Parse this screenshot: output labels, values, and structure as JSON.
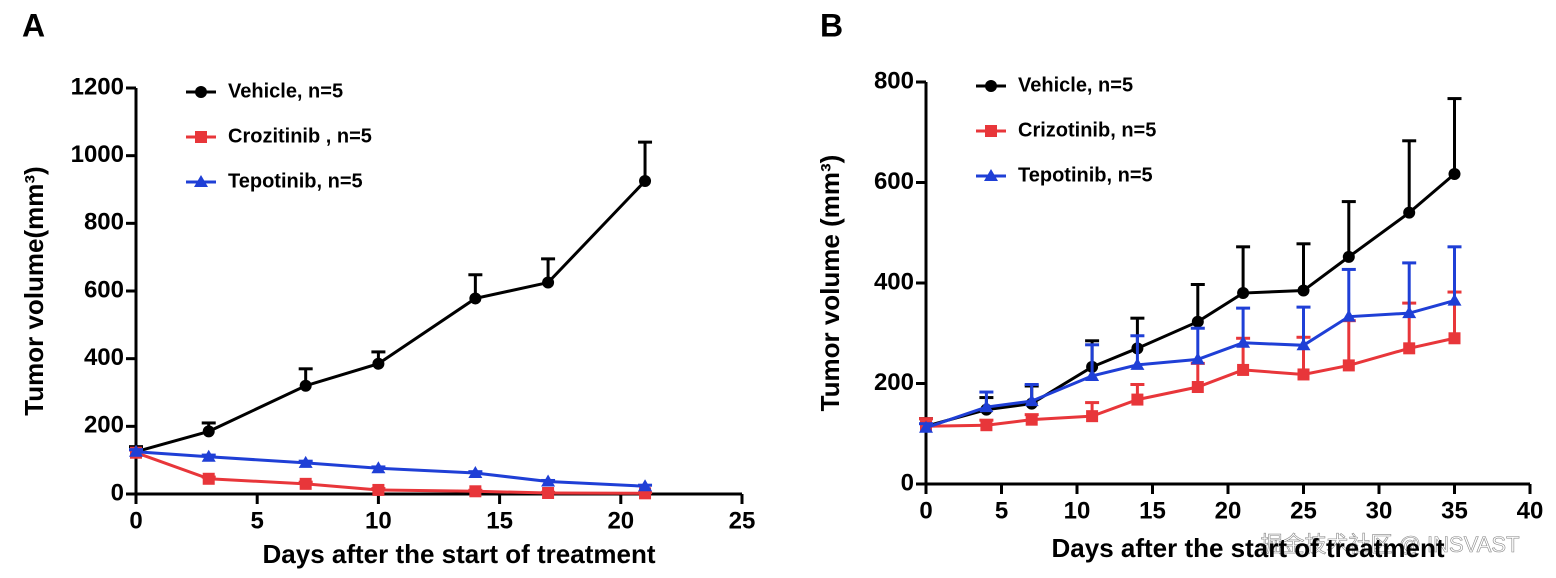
{
  "chart_data": [
    {
      "type": "line",
      "panel_label": "A",
      "x_label": "Days after the start of treatment",
      "y_label": "Tumor volume(mm³)",
      "x": [
        0,
        3,
        7,
        10,
        14,
        17,
        21
      ],
      "series": [
        {
          "name": "Vehicle, n=5",
          "color": "#000000",
          "marker": "circle",
          "values": [
            125,
            185,
            320,
            385,
            578,
            625,
            925
          ],
          "errors": [
            15,
            25,
            50,
            35,
            70,
            70,
            115
          ]
        },
        {
          "name": "Crozitinib , n=5",
          "color": "#e8363a",
          "marker": "square",
          "values": [
            122,
            45,
            30,
            12,
            8,
            3,
            2
          ],
          "errors": [
            8,
            5,
            5,
            4,
            3,
            2,
            2
          ]
        },
        {
          "name": "Tepotinib, n=5",
          "color": "#1f3fd6",
          "marker": "triangle",
          "values": [
            125,
            110,
            92,
            76,
            62,
            37,
            23
          ],
          "errors": [
            6,
            5,
            5,
            4,
            4,
            3,
            3
          ]
        }
      ],
      "xlim": [
        0,
        25
      ],
      "xticks": [
        0,
        5,
        10,
        15,
        20,
        25
      ],
      "ylim": [
        0,
        1200
      ],
      "yticks": [
        0,
        200,
        400,
        600,
        800,
        1000,
        1200
      ],
      "legend": "upper left"
    },
    {
      "type": "line",
      "panel_label": "B",
      "x_label": "Days after the start of treatment",
      "y_label": "Tumor volume (mm³)",
      "x": [
        0,
        4,
        7,
        11,
        14,
        18,
        21,
        25,
        28,
        32,
        35
      ],
      "series": [
        {
          "name": "Vehicle, n=5",
          "color": "#000000",
          "marker": "circle",
          "values": [
            115,
            148,
            160,
            233,
            270,
            323,
            380,
            385,
            452,
            540,
            617
          ],
          "errors": [
            15,
            24,
            35,
            52,
            60,
            74,
            92,
            93,
            110,
            143,
            150
          ]
        },
        {
          "name": "Crizotinib, n=5",
          "color": "#e8363a",
          "marker": "square",
          "values": [
            115,
            117,
            128,
            135,
            168,
            193,
            227,
            218,
            236,
            270,
            290
          ],
          "errors": [
            15,
            10,
            10,
            27,
            30,
            47,
            63,
            74,
            89,
            90,
            92
          ]
        },
        {
          "name": "Tepotinib, n=5",
          "color": "#1f3fd6",
          "marker": "triangle",
          "values": [
            112,
            153,
            165,
            215,
            237,
            248,
            281,
            276,
            333,
            340,
            365
          ],
          "errors": [
            8,
            30,
            33,
            62,
            58,
            62,
            69,
            76,
            94,
            100,
            107
          ]
        }
      ],
      "xlim": [
        0,
        40
      ],
      "xticks": [
        0,
        5,
        10,
        15,
        20,
        25,
        30,
        35,
        40
      ],
      "ylim": [
        0,
        800
      ],
      "yticks": [
        0,
        200,
        400,
        600,
        800
      ],
      "legend": "upper left"
    }
  ],
  "watermark": "掘金技术社区 @ INSVAST"
}
